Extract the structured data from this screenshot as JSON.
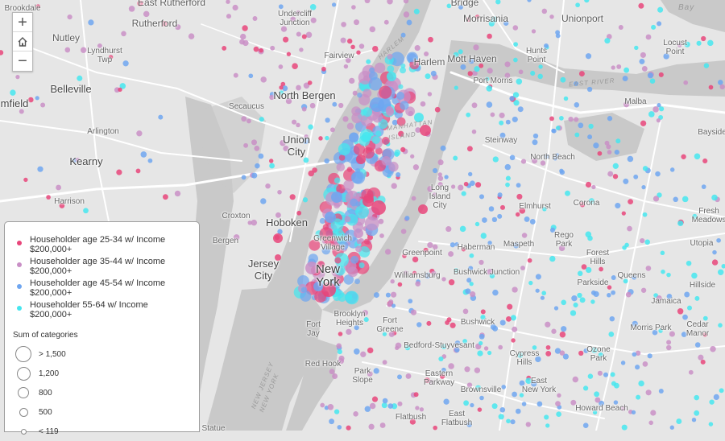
{
  "map": {
    "background_color": "#e6e6e6",
    "water_color": "#c9c9c9",
    "colors": {
      "age_25_34": "#e8457a",
      "age_35_44": "#c98fc6",
      "age_45_54": "#6fa6f0",
      "age_55_64": "#45e6ef"
    },
    "places": [
      {
        "name": "Brookdale",
        "size": "small"
      },
      {
        "name": "East Rutherford",
        "size": "normal"
      },
      {
        "name": "Bridge",
        "size": "normal"
      },
      {
        "name": "Nutley",
        "size": "normal"
      },
      {
        "name": "Rutherford",
        "size": "normal"
      },
      {
        "name": "Undercliff\nJunction",
        "size": "small"
      },
      {
        "name": "Morrisania",
        "size": "normal"
      },
      {
        "name": "Unionport",
        "size": "normal"
      },
      {
        "name": "Lyndhurst\nTwp",
        "size": "small"
      },
      {
        "name": "Fairview",
        "size": "small"
      },
      {
        "name": "Harlem",
        "size": "normal"
      },
      {
        "name": "Mott Haven",
        "size": "normal"
      },
      {
        "name": "Hunts\nPoint",
        "size": "small"
      },
      {
        "name": "Locust\nPoint",
        "size": "small"
      },
      {
        "name": "Belleville",
        "size": "large"
      },
      {
        "name": "Port Morris",
        "size": "small"
      },
      {
        "name": "mfield",
        "size": "large"
      },
      {
        "name": "North Bergen",
        "size": "large"
      },
      {
        "name": "Secaucus",
        "size": "small"
      },
      {
        "name": "Malba",
        "size": "small"
      },
      {
        "name": "Arlington",
        "size": "small"
      },
      {
        "name": "Union\nCity",
        "size": "large"
      },
      {
        "name": "Steinway",
        "size": "small"
      },
      {
        "name": "Bayside",
        "size": "small"
      },
      {
        "name": "Kearny",
        "size": "large"
      },
      {
        "name": "North Beach",
        "size": "small"
      },
      {
        "name": "Long\nIsland\nCity",
        "size": "small"
      },
      {
        "name": "Harrison",
        "size": "small"
      },
      {
        "name": "Elmhurst",
        "size": "small"
      },
      {
        "name": "Corona",
        "size": "small"
      },
      {
        "name": "Fresh\nMeadows",
        "size": "small"
      },
      {
        "name": "Croxton",
        "size": "small"
      },
      {
        "name": "Hoboken",
        "size": "large"
      },
      {
        "name": "Bergen",
        "size": "small"
      },
      {
        "name": "Greenwich\nVillage",
        "size": "small"
      },
      {
        "name": "Haberman",
        "size": "small"
      },
      {
        "name": "Rego\nPark",
        "size": "small"
      },
      {
        "name": "Utopia",
        "size": "small"
      },
      {
        "name": "Maspeth",
        "size": "small"
      },
      {
        "name": "Greenpoint",
        "size": "small"
      },
      {
        "name": "Forest\nHills",
        "size": "small"
      },
      {
        "name": "Jersey\nCity",
        "size": "large"
      },
      {
        "name": "New\nYork",
        "size": "xl"
      },
      {
        "name": "Bushwick Junction",
        "size": "small"
      },
      {
        "name": "Williamsburg",
        "size": "small"
      },
      {
        "name": "Parkside",
        "size": "small"
      },
      {
        "name": "Queens",
        "size": "small"
      },
      {
        "name": "Hillside",
        "size": "small"
      },
      {
        "name": "Jamaica",
        "size": "small"
      },
      {
        "name": "Brooklyn\nHeights",
        "size": "small"
      },
      {
        "name": "Fort\nGreene",
        "size": "small"
      },
      {
        "name": "Bushwick",
        "size": "small"
      },
      {
        "name": "Fort\nJay",
        "size": "small"
      },
      {
        "name": "Morris Park",
        "size": "small"
      },
      {
        "name": "Cedar\nManor",
        "size": "small"
      },
      {
        "name": "Bedford-Stuyvesant",
        "size": "small"
      },
      {
        "name": "Cypress\nHills",
        "size": "small"
      },
      {
        "name": "Ozone\nPark",
        "size": "small"
      },
      {
        "name": "Red Hook",
        "size": "small"
      },
      {
        "name": "Park\nSlope",
        "size": "small"
      },
      {
        "name": "Eastern\nParkway",
        "size": "small"
      },
      {
        "name": "East\nNew York",
        "size": "small"
      },
      {
        "name": "Brownsville",
        "size": "small"
      },
      {
        "name": "Howard Beach",
        "size": "small"
      },
      {
        "name": "Flatbush",
        "size": "small"
      },
      {
        "name": "East\nFlatbush",
        "size": "small"
      },
      {
        "name": "Statue",
        "size": "small"
      }
    ],
    "water_labels": [
      "Bay",
      "MANHATTAN\nISLAND",
      "EAST RIVER",
      "NEW JERSEY\nNEW YORK",
      "HARLEM"
    ]
  },
  "zoom_controls": {
    "zoom_in": "+",
    "home": "home",
    "zoom_out": "−"
  },
  "legend": {
    "categories": [
      {
        "label": "Householder age 25-34 w/ Income $200,000+",
        "color": "#e8457a"
      },
      {
        "label": "Householder age 35-44 w/ Income $200,000+",
        "color": "#c98fc6"
      },
      {
        "label": "Householder age 45-54 w/ Income $200,000+",
        "color": "#6fa6f0"
      },
      {
        "label": "Householder 55-64 w/ Income $200,000+",
        "color": "#45e6ef"
      }
    ],
    "size_title": "Sum of categories",
    "sizes": [
      {
        "label": "> 1,500",
        "value": 1500
      },
      {
        "label": "1,200",
        "value": 1200
      },
      {
        "label": "800",
        "value": 800
      },
      {
        "label": "500",
        "value": 500
      },
      {
        "label": "< 119",
        "value": 119
      }
    ]
  }
}
